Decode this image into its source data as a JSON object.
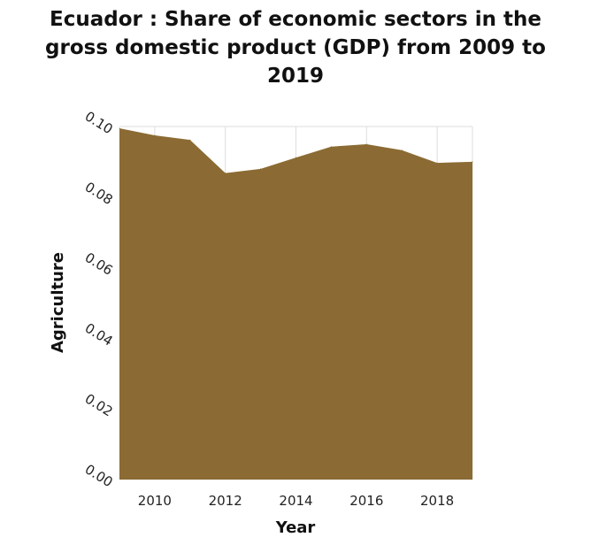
{
  "chart_data": {
    "type": "area",
    "title": "Ecuador : Share of economic sectors in the gross domestic product (GDP) from 2009 to 2019",
    "title_lines": [
      "Ecuador : Share of economic sectors in the",
      "gross domestic product (GDP) from 2009 to",
      "2019"
    ],
    "xlabel": "Year",
    "ylabel": "Agriculture",
    "xlim": [
      2009,
      2019
    ],
    "ylim": [
      0,
      0.1
    ],
    "x_ticks": [
      2010,
      2012,
      2014,
      2016,
      2018
    ],
    "y_ticks": [
      "0.00",
      "0.02",
      "0.04",
      "0.06",
      "0.08",
      "0.10"
    ],
    "grid": true,
    "fill_color": "#8b6b33",
    "x": [
      2009,
      2010,
      2011,
      2012,
      2013,
      2014,
      2015,
      2016,
      2017,
      2018,
      2019
    ],
    "values": [
      0.0995,
      0.0975,
      0.0962,
      0.0868,
      0.088,
      0.0912,
      0.0943,
      0.095,
      0.0933,
      0.0897,
      0.09
    ]
  }
}
